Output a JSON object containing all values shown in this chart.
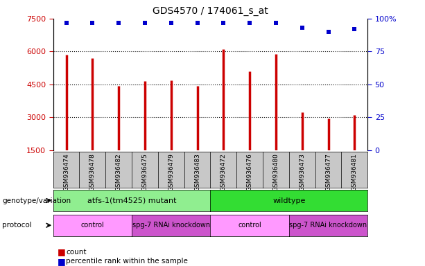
{
  "title": "GDS4570 / 174061_s_at",
  "samples": [
    "GSM936474",
    "GSM936478",
    "GSM936482",
    "GSM936475",
    "GSM936479",
    "GSM936483",
    "GSM936472",
    "GSM936476",
    "GSM936480",
    "GSM936473",
    "GSM936477",
    "GSM936481"
  ],
  "counts": [
    5850,
    5700,
    4450,
    4650,
    4700,
    4450,
    6100,
    5100,
    5900,
    3250,
    2950,
    3100
  ],
  "percentile_ranks": [
    97,
    97,
    97,
    97,
    97,
    97,
    97,
    97,
    97,
    93,
    90,
    92
  ],
  "bar_color": "#cc0000",
  "dot_color": "#0000cc",
  "ylim_left": [
    1500,
    7500
  ],
  "ylim_right": [
    0,
    100
  ],
  "yticks_left": [
    1500,
    3000,
    4500,
    6000,
    7500
  ],
  "yticks_right": [
    0,
    25,
    50,
    75,
    100
  ],
  "right_tick_labels": [
    "0",
    "25",
    "50",
    "75",
    "100%"
  ],
  "genotype_groups": [
    {
      "label": "atfs-1(tm4525) mutant",
      "start": 0,
      "end": 6,
      "color": "#90ee90"
    },
    {
      "label": "wildtype",
      "start": 6,
      "end": 12,
      "color": "#33dd33"
    }
  ],
  "protocol_groups": [
    {
      "label": "control",
      "start": 0,
      "end": 3,
      "color": "#ff99ff"
    },
    {
      "label": "spg-7 RNAi knockdown",
      "start": 3,
      "end": 6,
      "color": "#cc55cc"
    },
    {
      "label": "control",
      "start": 6,
      "end": 9,
      "color": "#ff99ff"
    },
    {
      "label": "spg-7 RNAi knockdown",
      "start": 9,
      "end": 12,
      "color": "#cc55cc"
    }
  ],
  "genotype_label": "genotype/variation",
  "protocol_label": "protocol",
  "legend_count_label": "count",
  "legend_percentile_label": "percentile rank within the sample",
  "xtick_bg_color": "#c8c8c8",
  "background_color": "#ffffff"
}
